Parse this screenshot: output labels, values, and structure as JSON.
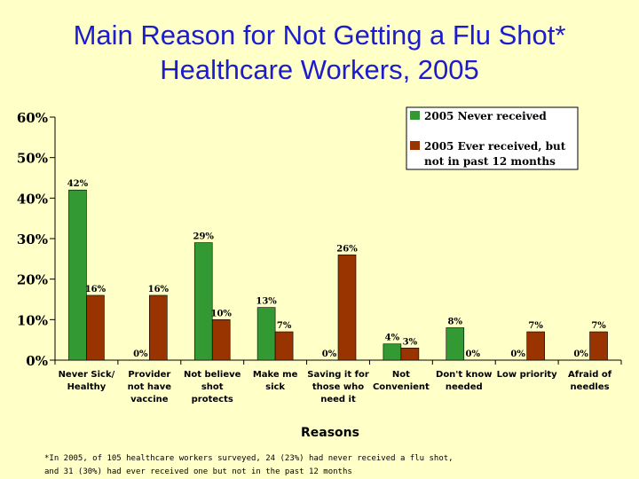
{
  "title_line1": "Main Reason for Not Getting a Flu Shot*",
  "title_line2": "Healthcare Workers, 2005",
  "footnote_line1": "*In 2005, of 105 healthcare workers surveyed, 24 (23%) had never received a flu shot,",
  "footnote_line2": "and 31 (30%) had ever received one but not in the past 12 months",
  "chart_data": {
    "type": "bar",
    "title": "Main Reason for Not Getting a Flu Shot* Healthcare Workers, 2005",
    "xlabel": "Reasons",
    "ylabel": "",
    "ylim": [
      0,
      60
    ],
    "yticks": [
      0,
      10,
      20,
      30,
      40,
      50,
      60
    ],
    "ytick_labels": [
      "0%",
      "10%",
      "20%",
      "30%",
      "40%",
      "50%",
      "60%"
    ],
    "grid": false,
    "legend_position": "top-right",
    "categories": [
      [
        "Never Sick/",
        "Healthy"
      ],
      [
        "Provider",
        "not have",
        "vaccine"
      ],
      [
        "Not believe",
        "shot",
        "protects"
      ],
      [
        "Make  me",
        "sick"
      ],
      [
        "Saving it for",
        "those who",
        "need it"
      ],
      [
        "Not",
        "Convenient"
      ],
      [
        "Don't  know",
        "needed"
      ],
      [
        "Low priority"
      ],
      [
        "Afraid of",
        "needles"
      ]
    ],
    "series": [
      {
        "name": "2005 Never received",
        "color": "#339933",
        "values": [
          42,
          0,
          29,
          13,
          0,
          4,
          8,
          0,
          0
        ],
        "labels": [
          "42%",
          "0%",
          "29%",
          "13%",
          "0%",
          "4%",
          "8%",
          "0%",
          "0%"
        ]
      },
      {
        "name_lines": [
          "2005 Ever received,  but",
          "not in  past 12 months"
        ],
        "color": "#993300",
        "values": [
          16,
          16,
          10,
          7,
          26,
          3,
          0,
          7,
          7
        ],
        "labels": [
          "16%",
          "16%",
          "10%",
          "7%",
          "26%",
          "3%",
          "0%",
          "7%",
          "7%"
        ]
      }
    ]
  }
}
